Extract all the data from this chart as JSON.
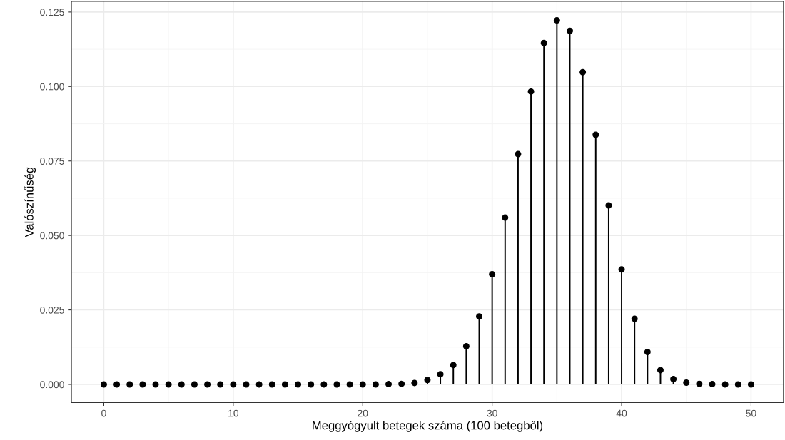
{
  "chart_data": {
    "type": "lollipop",
    "xlabel": "Meggyógyult betegek száma (100 betegből)",
    "ylabel": "Valószínűség",
    "x": [
      0,
      1,
      2,
      3,
      4,
      5,
      6,
      7,
      8,
      9,
      10,
      11,
      12,
      13,
      14,
      15,
      16,
      17,
      18,
      19,
      20,
      21,
      22,
      23,
      24,
      25,
      26,
      27,
      28,
      29,
      30,
      31,
      32,
      33,
      34,
      35,
      36,
      37,
      38,
      39,
      40,
      41,
      42,
      43,
      44,
      45,
      46,
      47,
      48,
      49,
      50
    ],
    "values": [
      0,
      0,
      0,
      0,
      0,
      0,
      0,
      0,
      0,
      0,
      0,
      0,
      0,
      0,
      0,
      0,
      0,
      0,
      0,
      0,
      0,
      0,
      0.0001,
      0.0002,
      0.0005,
      0.0015,
      0.0034,
      0.0065,
      0.0128,
      0.0228,
      0.037,
      0.056,
      0.0773,
      0.0983,
      0.1146,
      0.1222,
      0.1187,
      0.1048,
      0.0838,
      0.0601,
      0.0386,
      0.022,
      0.0109,
      0.0048,
      0.0018,
      0.0006,
      0.0002,
      0.0001,
      0,
      0,
      0
    ],
    "color": "#000000",
    "marker": "circle",
    "xlim": [
      -2.5,
      52.5
    ],
    "xticks": [
      0,
      10,
      20,
      30,
      40,
      50
    ],
    "ylim": [
      -0.00612,
      0.1286
    ],
    "yticks": [
      {
        "value": 0,
        "label": "0.000"
      },
      {
        "value": 0.025,
        "label": "0.025"
      },
      {
        "value": 0.05,
        "label": "0.050"
      },
      {
        "value": 0.075,
        "label": "0.075"
      },
      {
        "value": 0.1,
        "label": "0.100"
      },
      {
        "value": 0.125,
        "label": "0.125"
      }
    ],
    "grid": true
  }
}
